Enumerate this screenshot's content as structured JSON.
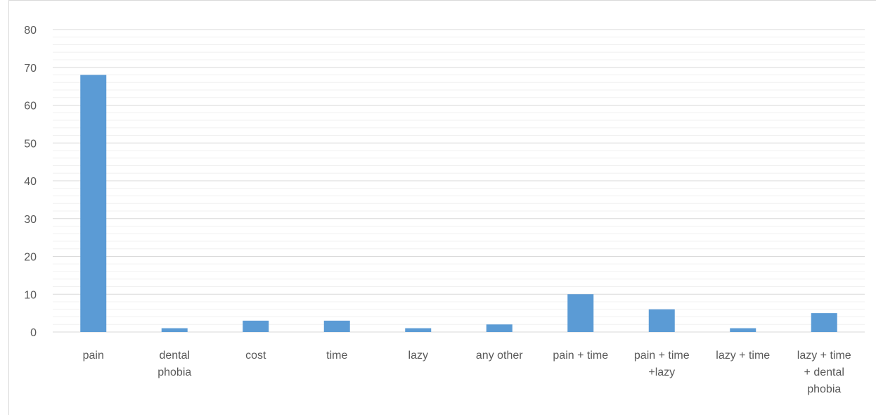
{
  "chart_data": {
    "type": "bar",
    "title": "",
    "xlabel": "",
    "ylabel": "",
    "ylim": [
      0,
      80
    ],
    "y_ticks": [
      0,
      10,
      20,
      30,
      40,
      50,
      60,
      70,
      80
    ],
    "minor_gridlines": true,
    "legend": "none",
    "bar_color": "#5b9bd5",
    "categories": [
      [
        "pain"
      ],
      [
        "dental",
        "phobia"
      ],
      [
        "cost"
      ],
      [
        "time"
      ],
      [
        "lazy"
      ],
      [
        "any other"
      ],
      [
        "pain + time"
      ],
      [
        "pain + time",
        "+lazy"
      ],
      [
        "lazy + time"
      ],
      [
        "lazy + time",
        "+ dental",
        "phobia"
      ]
    ],
    "values": [
      68,
      1,
      3,
      3,
      1,
      2,
      10,
      6,
      1,
      5
    ]
  }
}
